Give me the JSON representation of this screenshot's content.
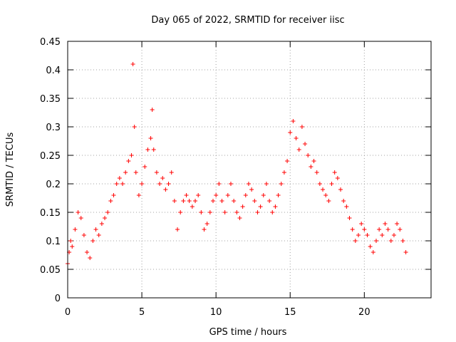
{
  "chart_data": {
    "type": "scatter",
    "title": "Day 065 of 2022, SRMTID for receiver iisc",
    "xlabel": "GPS time / hours",
    "ylabel": "SRMTID / TECUs",
    "xlim": [
      0,
      24.5
    ],
    "ylim": [
      0,
      0.45
    ],
    "x_ticks": [
      0,
      5,
      10,
      15,
      20
    ],
    "y_ticks": [
      0,
      0.05,
      0.1,
      0.15,
      0.2,
      0.25,
      0.3,
      0.35,
      0.4,
      0.45
    ],
    "grid": true,
    "legend": "none",
    "marker": "plus",
    "color": "#ff0000",
    "series": [
      {
        "name": "",
        "x": [
          0.0,
          0.1,
          0.2,
          0.3,
          0.5,
          0.7,
          0.9,
          1.1,
          1.3,
          1.5,
          1.7,
          1.9,
          2.1,
          2.3,
          2.5,
          2.7,
          2.9,
          3.1,
          3.3,
          3.5,
          3.7,
          3.9,
          4.1,
          4.3,
          4.4,
          4.5,
          4.6,
          4.8,
          5.0,
          5.2,
          5.4,
          5.6,
          5.7,
          5.8,
          6.0,
          6.2,
          6.4,
          6.6,
          6.8,
          7.0,
          7.2,
          7.4,
          7.6,
          7.8,
          8.0,
          8.2,
          8.4,
          8.6,
          8.8,
          9.0,
          9.2,
          9.4,
          9.6,
          9.8,
          10.0,
          10.2,
          10.4,
          10.6,
          10.8,
          11.0,
          11.2,
          11.4,
          11.6,
          11.8,
          12.0,
          12.2,
          12.4,
          12.6,
          12.8,
          13.0,
          13.2,
          13.4,
          13.6,
          13.8,
          14.0,
          14.2,
          14.4,
          14.6,
          14.8,
          15.0,
          15.2,
          15.4,
          15.6,
          15.8,
          16.0,
          16.2,
          16.4,
          16.6,
          16.8,
          17.0,
          17.2,
          17.4,
          17.6,
          17.8,
          18.0,
          18.2,
          18.4,
          18.6,
          18.8,
          19.0,
          19.2,
          19.4,
          19.6,
          19.8,
          20.0,
          20.2,
          20.4,
          20.6,
          20.8,
          21.0,
          21.2,
          21.4,
          21.6,
          21.8,
          22.0,
          22.2,
          22.4,
          22.6,
          22.8
        ],
        "y": [
          0.06,
          0.08,
          0.1,
          0.09,
          0.12,
          0.15,
          0.14,
          0.11,
          0.08,
          0.07,
          0.1,
          0.12,
          0.11,
          0.13,
          0.14,
          0.15,
          0.17,
          0.18,
          0.2,
          0.21,
          0.2,
          0.22,
          0.24,
          0.25,
          0.41,
          0.3,
          0.22,
          0.18,
          0.2,
          0.23,
          0.26,
          0.28,
          0.33,
          0.26,
          0.22,
          0.2,
          0.21,
          0.19,
          0.2,
          0.22,
          0.17,
          0.12,
          0.15,
          0.17,
          0.18,
          0.17,
          0.16,
          0.17,
          0.18,
          0.15,
          0.12,
          0.13,
          0.15,
          0.17,
          0.18,
          0.2,
          0.17,
          0.15,
          0.18,
          0.2,
          0.17,
          0.15,
          0.14,
          0.16,
          0.18,
          0.2,
          0.19,
          0.17,
          0.15,
          0.16,
          0.18,
          0.2,
          0.17,
          0.15,
          0.16,
          0.18,
          0.2,
          0.22,
          0.24,
          0.29,
          0.31,
          0.28,
          0.26,
          0.3,
          0.27,
          0.25,
          0.23,
          0.24,
          0.22,
          0.2,
          0.19,
          0.18,
          0.17,
          0.2,
          0.22,
          0.21,
          0.19,
          0.17,
          0.16,
          0.14,
          0.12,
          0.1,
          0.11,
          0.13,
          0.12,
          0.11,
          0.09,
          0.08,
          0.1,
          0.12,
          0.11,
          0.13,
          0.12,
          0.1,
          0.11,
          0.13,
          0.12,
          0.1,
          0.08
        ]
      }
    ]
  }
}
